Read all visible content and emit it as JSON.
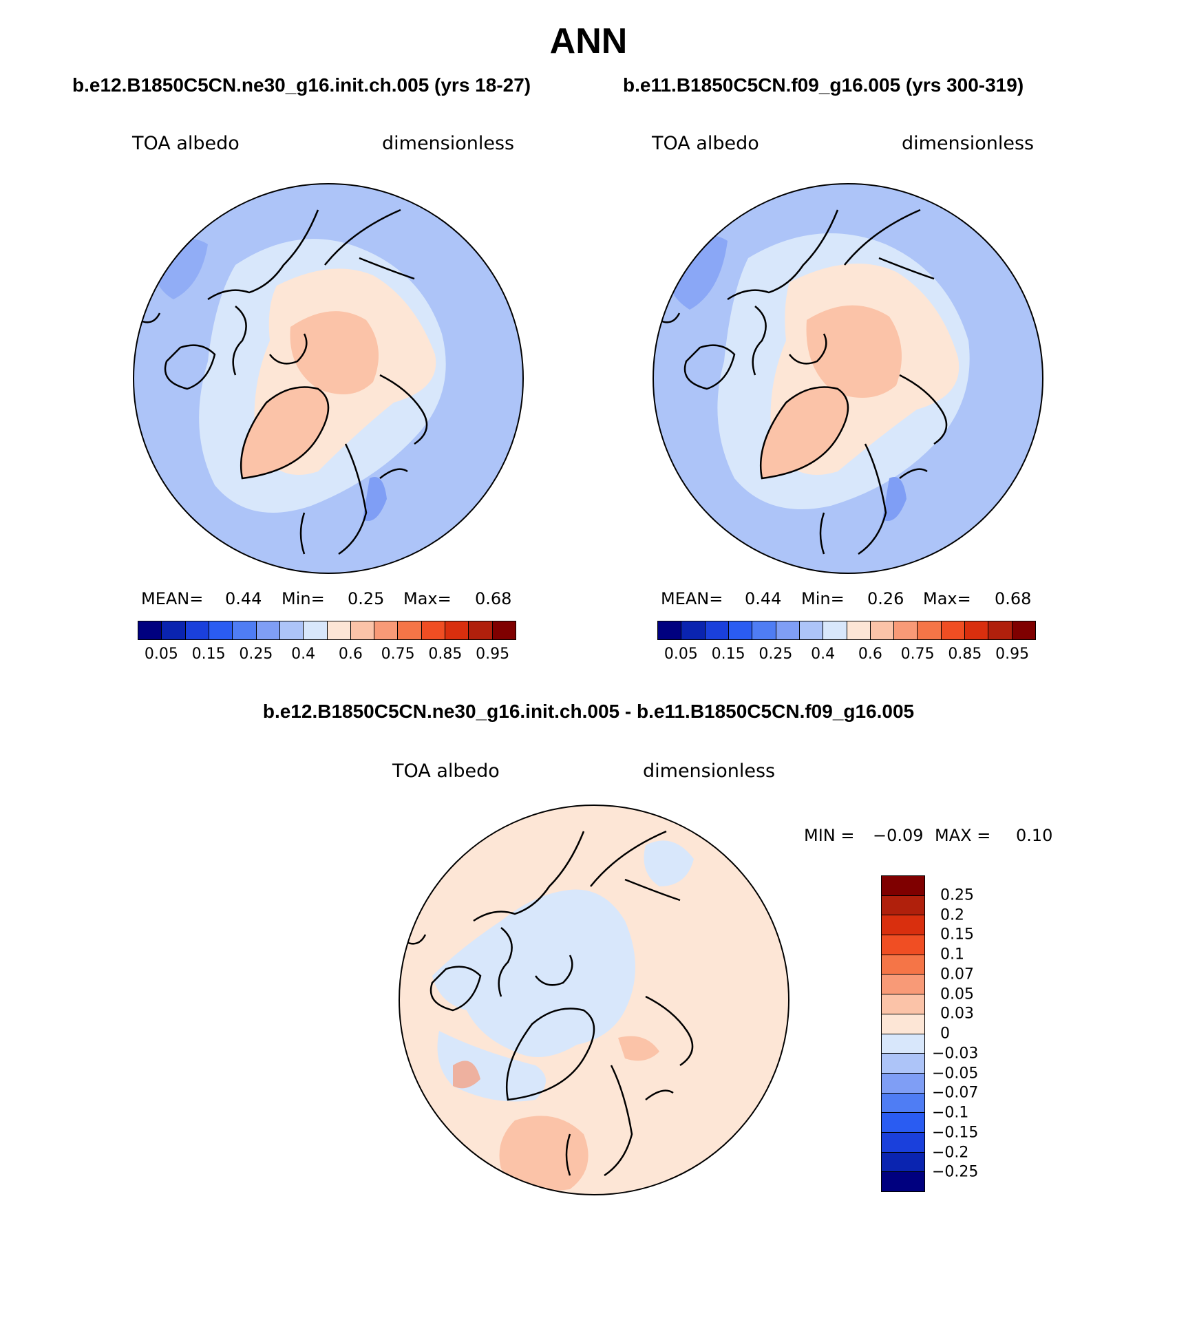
{
  "title": "ANN",
  "panels": [
    {
      "case": "b.e12.B1850C5CN.ne30_g16.init.ch.005 (yrs 18-27)",
      "variable": "TOA albedo",
      "units": "dimensionless",
      "mean_label": "MEAN=",
      "mean_value": "0.44",
      "min_label": "Min=",
      "min_value": "0.25",
      "max_label": "Max=",
      "max_value": "0.68"
    },
    {
      "case": "b.e11.B1850C5CN.f09_g16.005 (yrs 300-319)",
      "variable": "TOA albedo",
      "units": "dimensionless",
      "mean_label": "MEAN=",
      "mean_value": "0.44",
      "min_label": "Min=",
      "min_value": "0.26",
      "max_label": "Max=",
      "max_value": "0.68"
    }
  ],
  "diff": {
    "case": "b.e12.B1850C5CN.ne30_g16.init.ch.005 - b.e11.B1850C5CN.f09_g16.005",
    "variable": "TOA albedo",
    "units": "dimensionless",
    "min_label": "MIN =",
    "min_value": "−0.09",
    "max_label": "MAX =",
    "max_value": "0.10"
  },
  "colorbar_abs": {
    "ticks": [
      "0.05",
      "0.15",
      "0.25",
      "0.4",
      "0.6",
      "0.75",
      "0.85",
      "0.95"
    ],
    "colors": [
      "#00007f",
      "#0a24b0",
      "#1a40dc",
      "#2a5cf2",
      "#4f7df4",
      "#7f9ef5",
      "#adc4f8",
      "#d8e7fb",
      "#fde6d6",
      "#fbc3a8",
      "#f89a77",
      "#f57547",
      "#f04e23",
      "#d92f0e",
      "#b0200c",
      "#7f0000"
    ]
  },
  "colorbar_diff": {
    "ticks": [
      "0.25",
      "0.2",
      "0.15",
      "0.1",
      "0.07",
      "0.05",
      "0.03",
      "0",
      "−0.03",
      "−0.05",
      "−0.07",
      "−0.1",
      "−0.15",
      "−0.2",
      "−0.25"
    ],
    "colors": [
      "#7f0000",
      "#b0200c",
      "#d92f0e",
      "#f04e23",
      "#f57547",
      "#f89a77",
      "#fbc3a8",
      "#fde6d6",
      "#d8e7fb",
      "#adc4f8",
      "#7f9ef5",
      "#4f7df4",
      "#2a5cf2",
      "#1a40dc",
      "#0a24b0",
      "#00007f"
    ]
  },
  "map_colors": {
    "ocean_low": "#adc4f8",
    "ice_mid": "#d8e7fb",
    "ice_high": "#fde6d6",
    "pole_high": "#fbc3a8",
    "low_blue": "#7f9ef5",
    "diff_pos": "#fde6d6",
    "diff_pos2": "#fbc3a8",
    "diff_neg": "#d8e7fb"
  }
}
